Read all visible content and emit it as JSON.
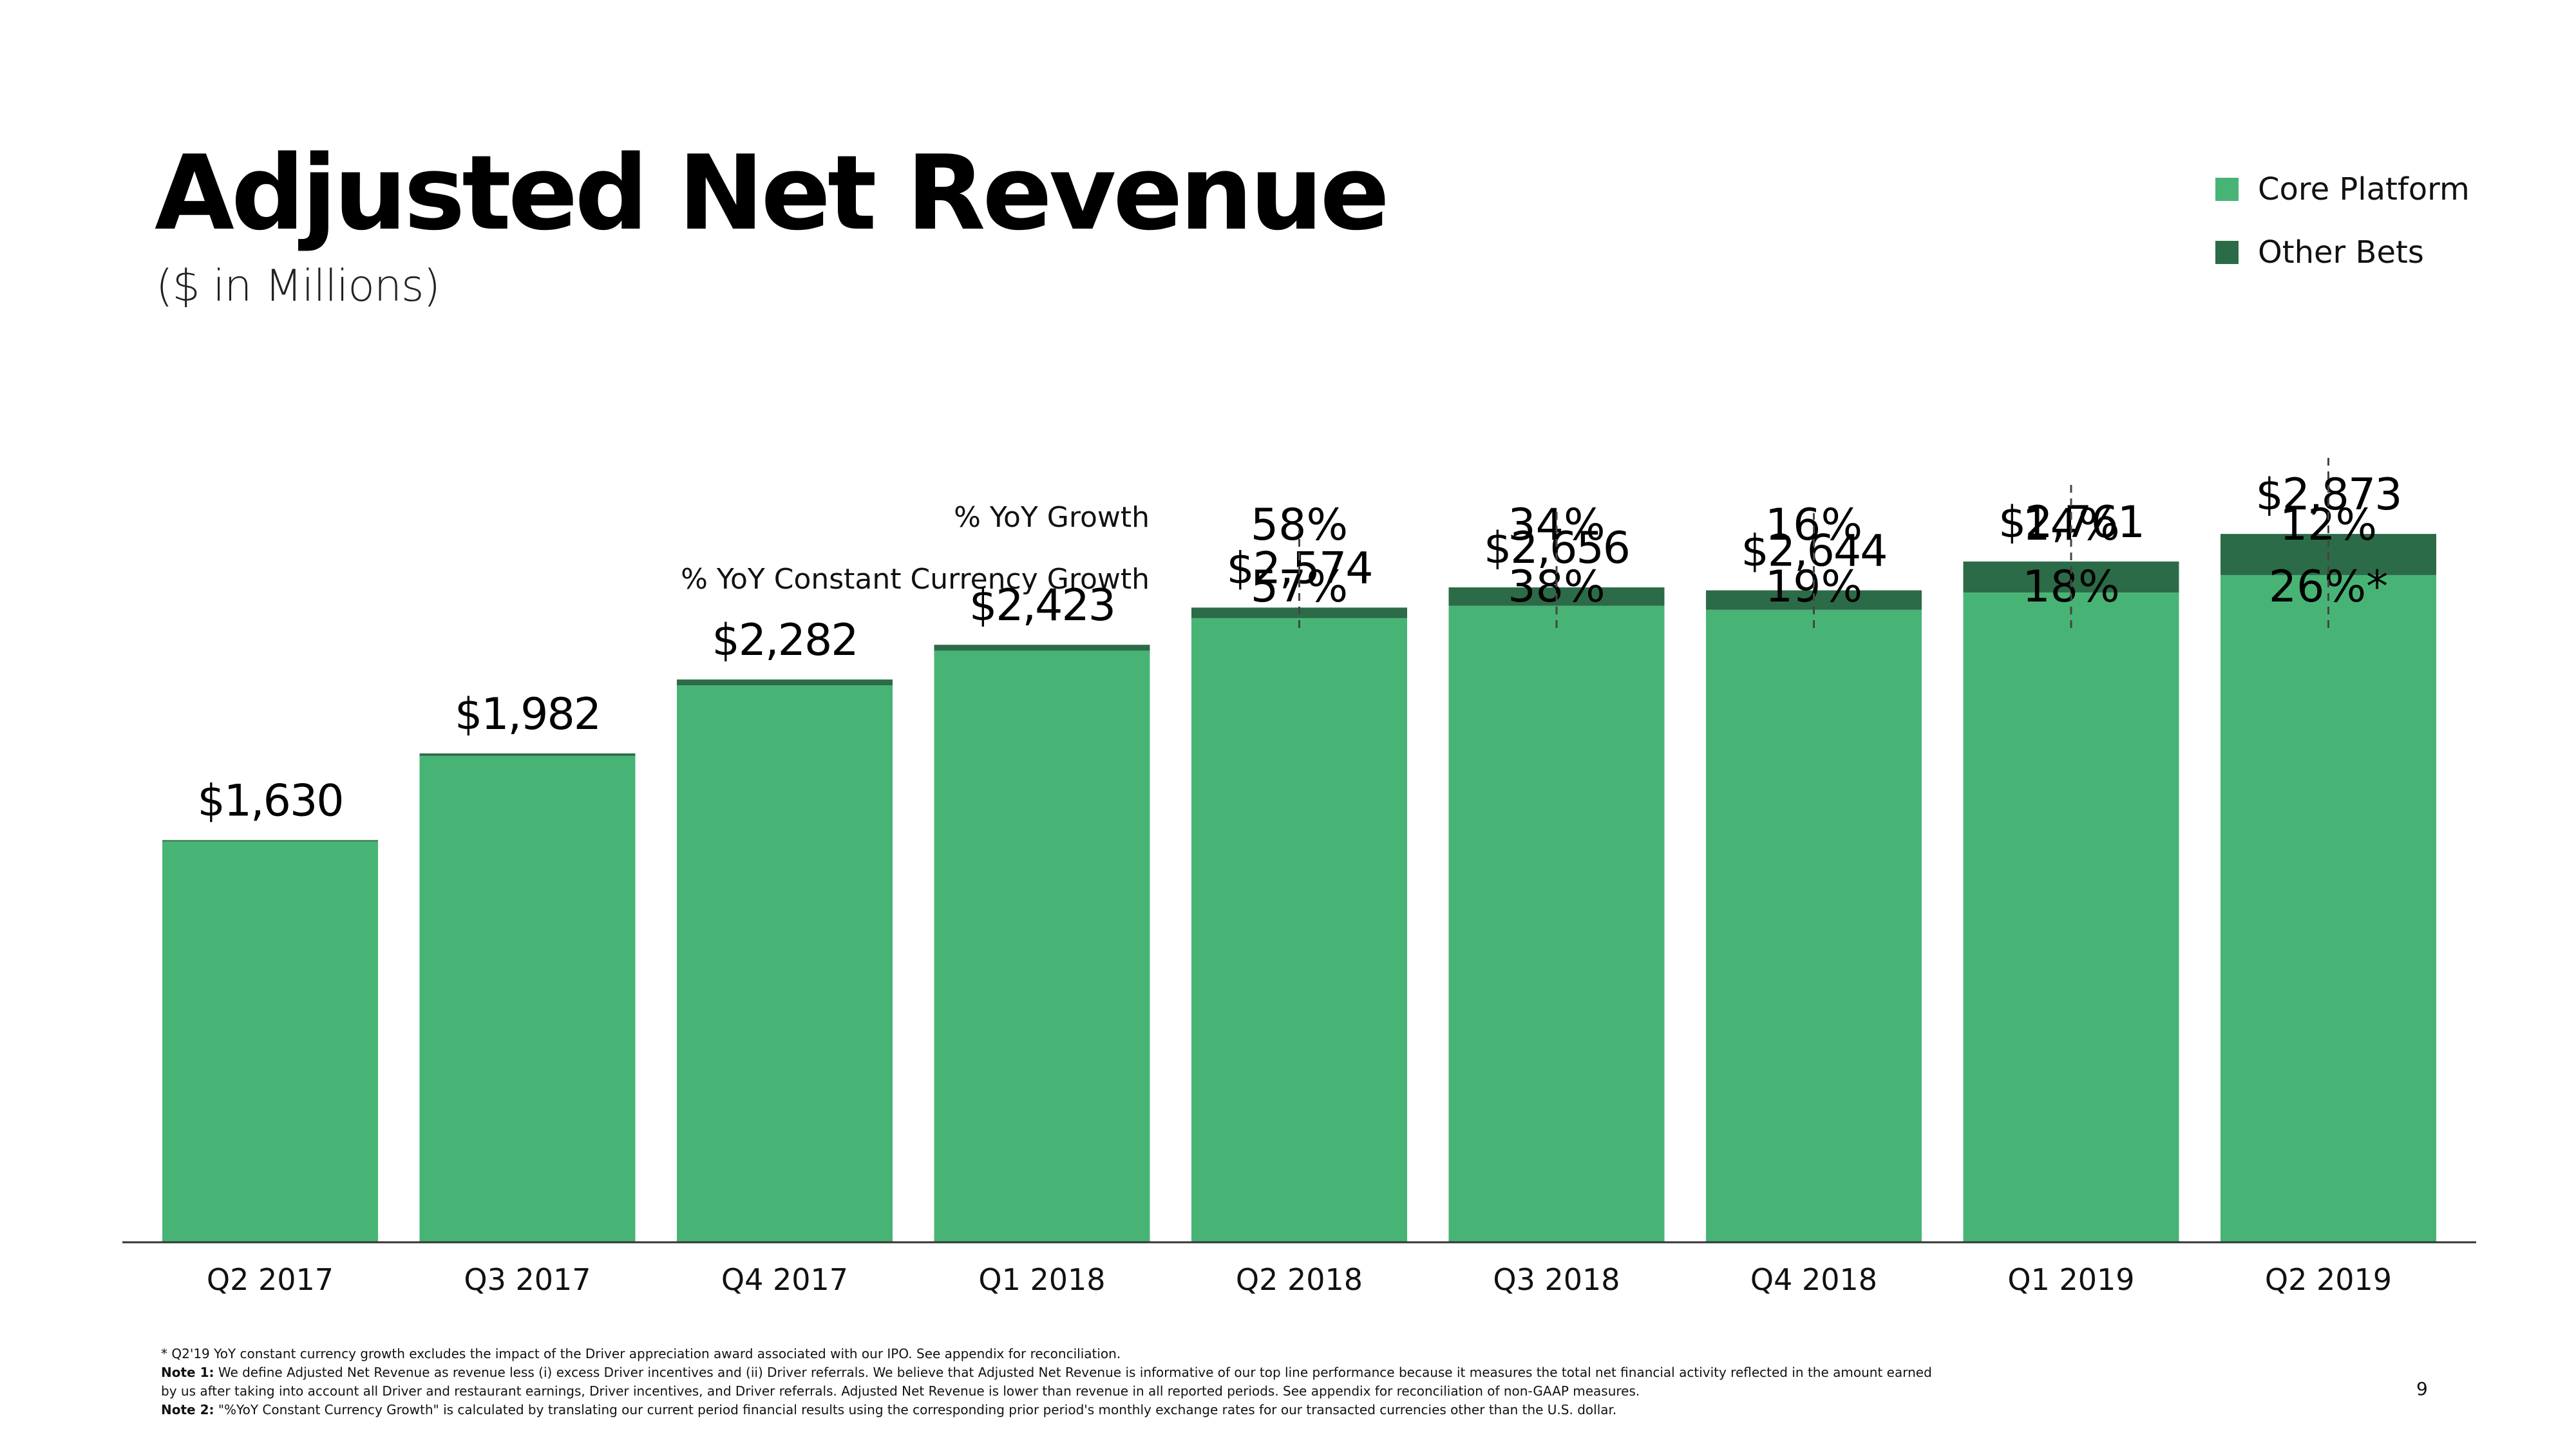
{
  "colors": {
    "core": "#47b475",
    "other": "#2c6b47",
    "axis": "#333333",
    "text": "#000000"
  },
  "header": {
    "title": "Adjusted Net Revenue",
    "subtitle": "($ in Millions)"
  },
  "growth_labels": {
    "yoy": "% YoY Growth",
    "yoy_cc": "% YoY Constant Currency Growth"
  },
  "chart_data": {
    "type": "bar",
    "stacked": true,
    "title": "Adjusted Net Revenue",
    "subtitle": "($ in Millions)",
    "categories": [
      "Q2 2017",
      "Q3 2017",
      "Q4 2017",
      "Q1 2018",
      "Q2 2018",
      "Q3 2018",
      "Q4 2018",
      "Q1 2019",
      "Q2 2019"
    ],
    "series": [
      {
        "name": "Core Platform",
        "values": [
          1625,
          1972,
          2258,
          2399,
          2531,
          2581,
          2565,
          2635,
          2706
        ]
      },
      {
        "name": "Other Bets",
        "values": [
          5,
          10,
          24,
          24,
          43,
          75,
          79,
          126,
          167
        ]
      }
    ],
    "totals_labels": [
      "$1,630",
      "$1,982",
      "$2,282",
      "$2,423",
      "$2,574",
      "$2,656",
      "$2,644",
      "$2,761",
      "$2,873"
    ],
    "yoy_growth": [
      "",
      "",
      "",
      "",
      "58%",
      "34%",
      "16%",
      "14%",
      "12%"
    ],
    "yoy_cc_growth": [
      "",
      "",
      "",
      "",
      "57%",
      "38%",
      "19%",
      "18%",
      "26%*"
    ],
    "ylim": [
      0,
      3000
    ],
    "xlabel": "",
    "ylabel": "",
    "grid": false,
    "legend": "top-right"
  },
  "footnotes": {
    "star": "* Q2'19 YoY constant currency growth excludes the impact of the Driver appreciation award associated with our IPO. See appendix for reconciliation.",
    "note1_label": "Note 1:",
    "note1_text": " We define Adjusted Net Revenue as revenue less (i) excess Driver incentives and (ii) Driver referrals. We believe that Adjusted Net Revenue is informative of our top line performance because it measures the total net financial activity reflected in the amount earned by us after taking into account all Driver and restaurant earnings, Driver incentives, and Driver referrals. Adjusted Net Revenue is lower than revenue in all reported periods. See appendix for reconciliation of non-GAAP measures.",
    "note2_label": "Note 2:",
    "note2_text": " \"%YoY Constant Currency Growth\" is calculated by translating our current period financial results using the corresponding prior period's monthly exchange rates for our transacted currencies other than the U.S. dollar."
  },
  "page_number": "9"
}
